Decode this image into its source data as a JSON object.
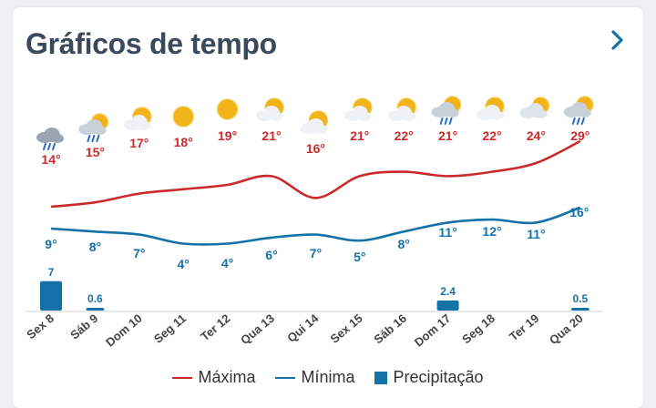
{
  "header": {
    "title": "Gráficos de tempo",
    "next_icon": "chevron-right-icon"
  },
  "colors": {
    "max": "#cc2a2a",
    "min": "#1572a8",
    "precip": "#1572a8",
    "title": "#3b4a5a"
  },
  "chart_data": {
    "type": "line",
    "categories": [
      "Sex 8",
      "Sáb 9",
      "Dom 10",
      "Seg 11",
      "Ter 12",
      "Qua 13",
      "Qui 14",
      "Sex 15",
      "Sáb 16",
      "Dom 17",
      "Seg 18",
      "Ter 19",
      "Qua 20"
    ],
    "icons": [
      "rain-cloud-icon",
      "rain-cloud-sun-icon",
      "partly-sunny-icon",
      "sun-icon",
      "sun-icon",
      "partly-sunny-icon",
      "partly-sunny-icon",
      "partly-sunny-icon",
      "partly-sunny-icon",
      "rain-cloud-sun-icon",
      "partly-sunny-icon",
      "cloudy-sun-icon",
      "rain-cloud-sun-icon"
    ],
    "series": [
      {
        "name": "Máxima",
        "values": [
          14,
          15,
          17,
          18,
          19,
          21,
          16,
          21,
          22,
          21,
          22,
          24,
          29
        ],
        "labels": [
          "14°",
          "15°",
          "17°",
          "18°",
          "19°",
          "21°",
          "16°",
          "21°",
          "22°",
          "21°",
          "22°",
          "24°",
          "29°"
        ]
      },
      {
        "name": "Mínima",
        "values": [
          9,
          8,
          7,
          4,
          4,
          6,
          7,
          5,
          8,
          11,
          12,
          11,
          16
        ],
        "labels": [
          "9°",
          "8°",
          "7°",
          "4°",
          "4°",
          "6°",
          "7°",
          "5°",
          "8°",
          "11°",
          "12°",
          "11°",
          "16°"
        ]
      },
      {
        "name": "Precipitação",
        "values": [
          7,
          0.6,
          null,
          null,
          null,
          null,
          null,
          null,
          null,
          2.4,
          null,
          null,
          0.5
        ],
        "labels": [
          "7",
          "0.6",
          "",
          "",
          "",
          "",
          "",
          "",
          "",
          "2.4",
          "",
          "",
          "0.5"
        ]
      }
    ]
  },
  "legend": {
    "max_label": "Máxima",
    "min_label": "Mínima",
    "precip_label": "Precipitação"
  }
}
